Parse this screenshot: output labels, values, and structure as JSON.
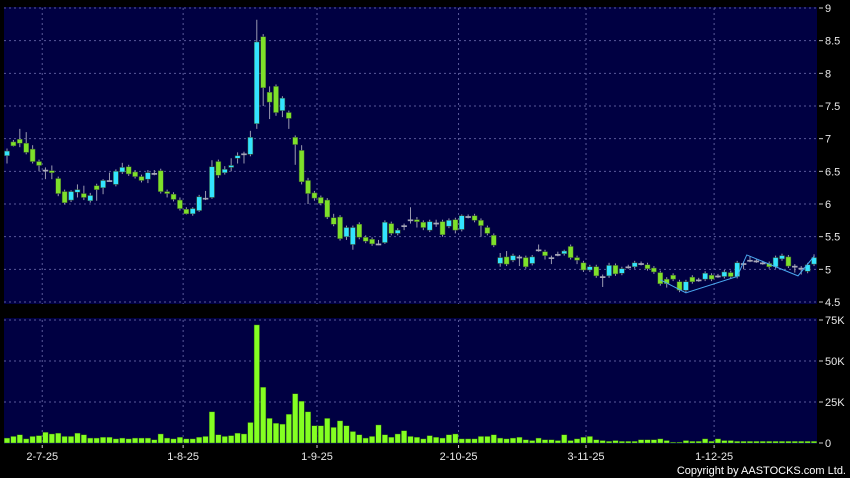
{
  "chart_data": [
    {
      "type": "candlestick",
      "panel": "price",
      "ylim": [
        4.5,
        9
      ],
      "y_ticks": [
        "9",
        "8.5",
        "8",
        "7.5",
        "7",
        "6.5",
        "6",
        "5.5",
        "5",
        "4.5"
      ],
      "y_tick_values": [
        9,
        8.5,
        8,
        7.5,
        7,
        6.5,
        6,
        5.5,
        5,
        4.5
      ],
      "grid": true,
      "colors": {
        "background": "#000042",
        "up": "#33e4ff",
        "down": "#7ee02a",
        "doji": "#a8a8b8",
        "grid": "#5a5a9a",
        "overlay": "#4aa8f0"
      },
      "ohlc_fields": [
        "open",
        "high",
        "low",
        "close"
      ],
      "ohlc": [
        [
          6.74,
          6.85,
          6.62,
          6.81
        ],
        [
          6.95,
          6.98,
          6.88,
          6.89
        ],
        [
          6.99,
          7.15,
          6.87,
          6.93
        ],
        [
          6.93,
          7.1,
          6.76,
          6.79
        ],
        [
          6.84,
          6.9,
          6.62,
          6.65
        ],
        [
          6.65,
          6.68,
          6.5,
          6.59
        ],
        [
          6.52,
          6.56,
          6.38,
          6.52
        ],
        [
          6.51,
          6.59,
          6.38,
          6.48
        ],
        [
          6.39,
          6.42,
          6.12,
          6.16
        ],
        [
          6.19,
          6.22,
          5.99,
          6.02
        ],
        [
          6.06,
          6.21,
          6.03,
          6.19
        ],
        [
          6.18,
          6.3,
          6.1,
          6.22
        ],
        [
          6.16,
          6.28,
          6.06,
          6.1
        ],
        [
          6.05,
          6.17,
          6.02,
          6.13
        ],
        [
          6.28,
          6.31,
          6.05,
          6.22
        ],
        [
          6.25,
          6.38,
          6.15,
          6.36
        ],
        [
          6.36,
          6.48,
          6.36,
          6.36
        ],
        [
          6.3,
          6.53,
          6.27,
          6.5
        ],
        [
          6.49,
          6.63,
          6.46,
          6.56
        ],
        [
          6.57,
          6.6,
          6.43,
          6.46
        ],
        [
          6.49,
          6.52,
          6.39,
          6.42
        ],
        [
          6.42,
          6.45,
          6.33,
          6.36
        ],
        [
          6.38,
          6.52,
          6.32,
          6.48
        ],
        [
          6.47,
          6.52,
          6.44,
          6.47
        ],
        [
          6.51,
          6.54,
          6.16,
          6.19
        ],
        [
          6.19,
          6.22,
          6.1,
          6.16
        ],
        [
          6.15,
          6.18,
          6.04,
          6.07
        ],
        [
          6.06,
          6.1,
          5.9,
          5.93
        ],
        [
          5.92,
          5.95,
          5.84,
          5.85
        ],
        [
          5.85,
          5.95,
          5.82,
          5.93
        ],
        [
          5.9,
          6.14,
          5.88,
          6.11
        ],
        [
          6.09,
          6.2,
          6.06,
          6.09
        ],
        [
          6.1,
          6.67,
          6.08,
          6.57
        ],
        [
          6.65,
          6.68,
          6.4,
          6.44
        ],
        [
          6.48,
          6.58,
          6.45,
          6.53
        ],
        [
          6.56,
          6.7,
          6.5,
          6.59
        ],
        [
          6.7,
          6.79,
          6.62,
          6.74
        ],
        [
          6.77,
          6.8,
          6.62,
          6.77
        ],
        [
          6.76,
          7.12,
          6.73,
          7.02
        ],
        [
          7.23,
          8.82,
          7.15,
          8.48
        ],
        [
          8.56,
          8.6,
          7.5,
          7.78
        ],
        [
          7.71,
          7.8,
          7.3,
          7.56
        ],
        [
          7.8,
          7.83,
          7.35,
          7.4
        ],
        [
          7.43,
          7.65,
          7.33,
          7.62
        ],
        [
          7.4,
          7.43,
          7.15,
          7.31
        ],
        [
          7.02,
          7.05,
          6.6,
          6.91
        ],
        [
          6.82,
          6.9,
          6.3,
          6.34
        ],
        [
          6.36,
          6.4,
          6.0,
          6.16
        ],
        [
          6.17,
          6.2,
          6.05,
          6.09
        ],
        [
          6.1,
          6.13,
          5.98,
          6.01
        ],
        [
          6.06,
          6.09,
          5.77,
          5.8
        ],
        [
          5.79,
          5.85,
          5.66,
          5.69
        ],
        [
          5.8,
          5.83,
          5.44,
          5.47
        ],
        [
          5.5,
          5.67,
          5.45,
          5.64
        ],
        [
          5.38,
          5.67,
          5.3,
          5.64
        ],
        [
          5.69,
          5.72,
          5.46,
          5.49
        ],
        [
          5.49,
          5.52,
          5.4,
          5.43
        ],
        [
          5.46,
          5.49,
          5.36,
          5.39
        ],
        [
          5.39,
          5.45,
          5.37,
          5.39
        ],
        [
          5.41,
          5.75,
          5.39,
          5.72
        ],
        [
          5.7,
          5.73,
          5.52,
          5.55
        ],
        [
          5.55,
          5.63,
          5.52,
          5.6
        ],
        [
          5.67,
          5.7,
          5.6,
          5.67
        ],
        [
          5.76,
          5.95,
          5.7,
          5.76
        ],
        [
          5.76,
          5.8,
          5.64,
          5.73
        ],
        [
          5.72,
          5.75,
          5.6,
          5.64
        ],
        [
          5.6,
          5.76,
          5.57,
          5.73
        ],
        [
          5.71,
          5.76,
          5.65,
          5.71
        ],
        [
          5.73,
          5.76,
          5.5,
          5.53
        ],
        [
          5.66,
          5.78,
          5.63,
          5.75
        ],
        [
          5.76,
          5.79,
          5.55,
          5.6
        ],
        [
          5.61,
          5.84,
          5.58,
          5.82
        ],
        [
          5.81,
          5.84,
          5.78,
          5.81
        ],
        [
          5.82,
          5.85,
          5.72,
          5.75
        ],
        [
          5.75,
          5.78,
          5.5,
          5.67
        ],
        [
          5.64,
          5.67,
          5.52,
          5.55
        ],
        [
          5.52,
          5.55,
          5.34,
          5.37
        ],
        [
          5.09,
          5.25,
          5.04,
          5.18
        ],
        [
          5.19,
          5.28,
          5.05,
          5.08
        ],
        [
          5.14,
          5.24,
          5.11,
          5.21
        ],
        [
          5.19,
          5.22,
          5.05,
          5.19
        ],
        [
          5.18,
          5.21,
          5.01,
          5.04
        ],
        [
          5.09,
          5.22,
          5.06,
          5.19
        ],
        [
          5.3,
          5.38,
          5.27,
          5.3
        ],
        [
          5.27,
          5.3,
          5.15,
          5.21
        ],
        [
          5.18,
          5.21,
          5.08,
          5.18
        ],
        [
          5.23,
          5.27,
          5.2,
          5.23
        ],
        [
          5.24,
          5.3,
          5.21,
          5.28
        ],
        [
          5.35,
          5.38,
          5.15,
          5.18
        ],
        [
          5.18,
          5.21,
          5.08,
          5.14
        ],
        [
          5.1,
          5.13,
          4.96,
          4.99
        ],
        [
          4.99,
          5.07,
          4.96,
          5.04
        ],
        [
          5.04,
          5.07,
          4.87,
          4.9
        ],
        [
          4.89,
          4.92,
          4.73,
          4.89
        ],
        [
          4.9,
          5.1,
          4.87,
          5.06
        ],
        [
          5.06,
          5.09,
          4.9,
          4.93
        ],
        [
          4.94,
          5.04,
          4.91,
          5.01
        ],
        [
          5.04,
          5.07,
          5.01,
          5.04
        ],
        [
          5.04,
          5.13,
          5.01,
          5.1
        ],
        [
          5.09,
          5.12,
          5.06,
          5.09
        ],
        [
          5.07,
          5.1,
          4.98,
          5.01
        ],
        [
          5.02,
          5.05,
          4.93,
          4.96
        ],
        [
          4.95,
          4.98,
          4.75,
          4.78
        ],
        [
          4.85,
          4.88,
          4.72,
          4.78
        ],
        [
          4.91,
          4.94,
          4.82,
          4.85
        ],
        [
          4.81,
          4.84,
          4.65,
          4.68
        ],
        [
          4.68,
          4.84,
          4.65,
          4.81
        ],
        [
          4.88,
          4.91,
          4.78,
          4.81
        ],
        [
          4.84,
          4.87,
          4.81,
          4.84
        ],
        [
          4.85,
          4.97,
          4.82,
          4.94
        ],
        [
          4.91,
          4.94,
          4.82,
          4.85
        ],
        [
          4.9,
          4.93,
          4.87,
          4.9
        ],
        [
          4.89,
          4.99,
          4.86,
          4.96
        ],
        [
          4.95,
          4.98,
          4.86,
          4.89
        ],
        [
          4.89,
          5.13,
          4.86,
          5.1
        ],
        [
          5.09,
          5.12,
          5.0,
          5.09
        ],
        [
          5.14,
          5.2,
          5.11,
          5.14
        ],
        [
          5.13,
          5.16,
          5.1,
          5.13
        ],
        [
          5.1,
          5.13,
          5.07,
          5.1
        ],
        [
          5.09,
          5.12,
          5.01,
          5.04
        ],
        [
          5.04,
          5.21,
          5.01,
          5.18
        ],
        [
          5.16,
          5.24,
          5.13,
          5.21
        ],
        [
          5.19,
          5.22,
          5.02,
          5.05
        ],
        [
          5.05,
          5.08,
          4.95,
          5.05
        ],
        [
          5.02,
          5.05,
          4.92,
          5.02
        ],
        [
          4.97,
          5.1,
          4.94,
          5.07
        ],
        [
          5.08,
          5.23,
          5.05,
          5.18
        ]
      ],
      "overlay_line": [
        [
          102,
          4.84
        ],
        [
          106,
          4.64
        ],
        [
          114,
          4.89
        ],
        [
          115.5,
          5.22
        ],
        [
          123.5,
          4.9
        ],
        [
          126,
          5.2
        ]
      ]
    },
    {
      "type": "bar",
      "panel": "volume",
      "ylim": [
        0,
        75000
      ],
      "y_ticks": [
        "75K",
        "50K",
        "25K",
        "0"
      ],
      "y_tick_values": [
        75000,
        50000,
        25000,
        0
      ],
      "grid": true,
      "colors": {
        "bar": "#84ff22"
      },
      "values_k": [
        3,
        4,
        5,
        2.5,
        4,
        4.5,
        6.5,
        5.5,
        6,
        4,
        4,
        6,
        5,
        3,
        3,
        3.5,
        3.5,
        2.5,
        3,
        2.5,
        3,
        3,
        3,
        2,
        5.5,
        3,
        2.5,
        3.5,
        2.5,
        2.5,
        3.5,
        4,
        19,
        5,
        4,
        4.5,
        6,
        5.5,
        12.5,
        72,
        34,
        15,
        12,
        11.5,
        17.5,
        30,
        25.5,
        19,
        10.5,
        10.5,
        15,
        9.5,
        13.5,
        10.5,
        7,
        5,
        3,
        4,
        11,
        5,
        3.5,
        5.5,
        7.5,
        4,
        3.5,
        2.5,
        4.5,
        3.5,
        3,
        5,
        5.5,
        2.5,
        2.5,
        2.5,
        4,
        4,
        5,
        3,
        2.5,
        3,
        3.5,
        2,
        1.5,
        3,
        2,
        2,
        1.5,
        5,
        1.5,
        2.5,
        3.5,
        4,
        2,
        1.5,
        1,
        1.5,
        1,
        1,
        1,
        2,
        2,
        2,
        2.5,
        1.5,
        0.5,
        0.5,
        1.5,
        1,
        1,
        2.5,
        1,
        2.5,
        1.5,
        1.5,
        1,
        1,
        1,
        1,
        1,
        1,
        1,
        1,
        1,
        1,
        1,
        1,
        1
      ]
    }
  ],
  "x_axis": {
    "tick_labels": [
      "2-7-25",
      "1-8-25",
      "1-9-25",
      "2-10-25",
      "3-11-25",
      "1-12-25"
    ]
  },
  "copyright": "Copyright by AASTOCKS.com Ltd."
}
